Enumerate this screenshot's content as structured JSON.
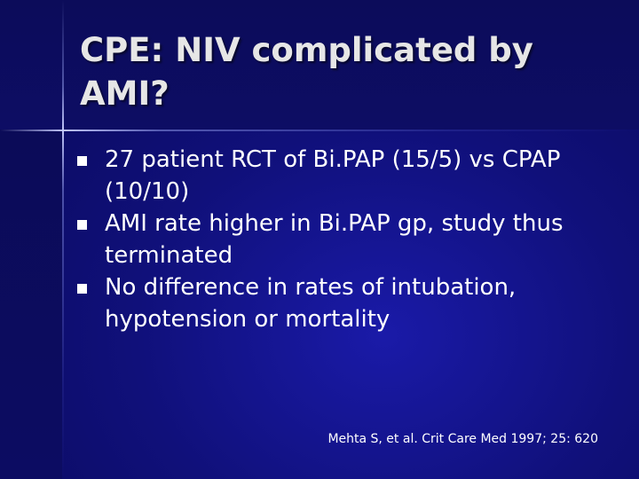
{
  "slide": {
    "title": "CPE: NIV complicated by AMI?",
    "bullets": [
      {
        "text": "27 patient RCT of Bi.PAP (15/5) vs CPAP (10/10)"
      },
      {
        "text": "AMI rate higher in Bi.PAP gp, study thus terminated"
      },
      {
        "text": "No difference in rates of intubation, hypotension or mortality"
      }
    ],
    "citation": "Mehta S, et al. Crit Care Med 1997; 25: 620",
    "bullet_icon": "square-bullet-icon"
  },
  "colors": {
    "background_center": "#1a1aa8",
    "background_edge": "#080856",
    "title_text": "#e6e6e6",
    "body_text": "#ffffff"
  }
}
